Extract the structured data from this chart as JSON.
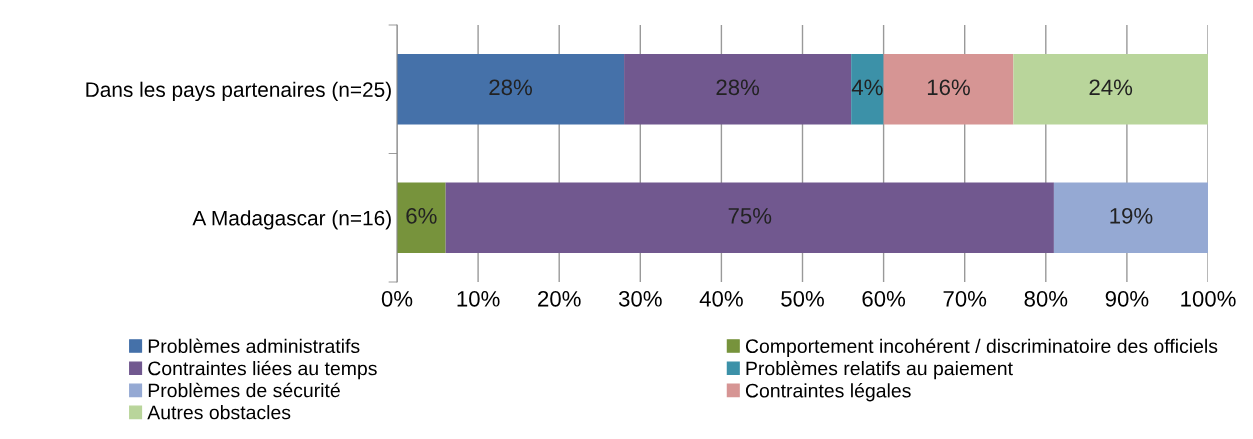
{
  "chart_data": {
    "type": "bar",
    "orientation": "horizontal",
    "stacked": true,
    "categories": [
      "Dans les pays partenaires (n=25)",
      "A Madagascar (n=16)"
    ],
    "series": [
      {
        "name": "Problèmes administratifs",
        "color": "#4571a9",
        "values": [
          28,
          null
        ],
        "value_labels": [
          "28%",
          null
        ]
      },
      {
        "name": "Comportement incohérent / discriminatoire des officiels",
        "color": "#77933c",
        "values": [
          null,
          6
        ],
        "value_labels": [
          null,
          "6%"
        ]
      },
      {
        "name": "Contraintes liées au temps",
        "color": "#71588f",
        "values": [
          28,
          75
        ],
        "value_labels": [
          "28%",
          "75%"
        ]
      },
      {
        "name": "Problèmes relatifs au paiement",
        "color": "#3c91a8",
        "values": [
          4,
          null
        ],
        "value_labels": [
          "4%",
          null
        ]
      },
      {
        "name": "Problèmes de sécurité",
        "color": "#95a9d3",
        "values": [
          null,
          19
        ],
        "value_labels": [
          null,
          "19%"
        ]
      },
      {
        "name": "Contraintes légales",
        "color": "#d69594",
        "values": [
          16,
          null
        ],
        "value_labels": [
          "16%",
          null
        ]
      },
      {
        "name": "Autres obstacles",
        "color": "#b9d59b",
        "values": [
          24,
          null
        ],
        "value_labels": [
          "24%",
          null
        ]
      }
    ],
    "xlim": [
      0,
      100
    ],
    "xticks": [
      {
        "value": 0,
        "label": "0%"
      },
      {
        "value": 10,
        "label": "10%"
      },
      {
        "value": 20,
        "label": "20%"
      },
      {
        "value": 30,
        "label": "30%"
      },
      {
        "value": 40,
        "label": "40%"
      },
      {
        "value": 50,
        "label": "50%"
      },
      {
        "value": 60,
        "label": "60%"
      },
      {
        "value": 70,
        "label": "70%"
      },
      {
        "value": 80,
        "label": "80%"
      },
      {
        "value": 90,
        "label": "90%"
      },
      {
        "value": 100,
        "label": "100%"
      }
    ],
    "grid": "x",
    "legend": "bottom"
  }
}
